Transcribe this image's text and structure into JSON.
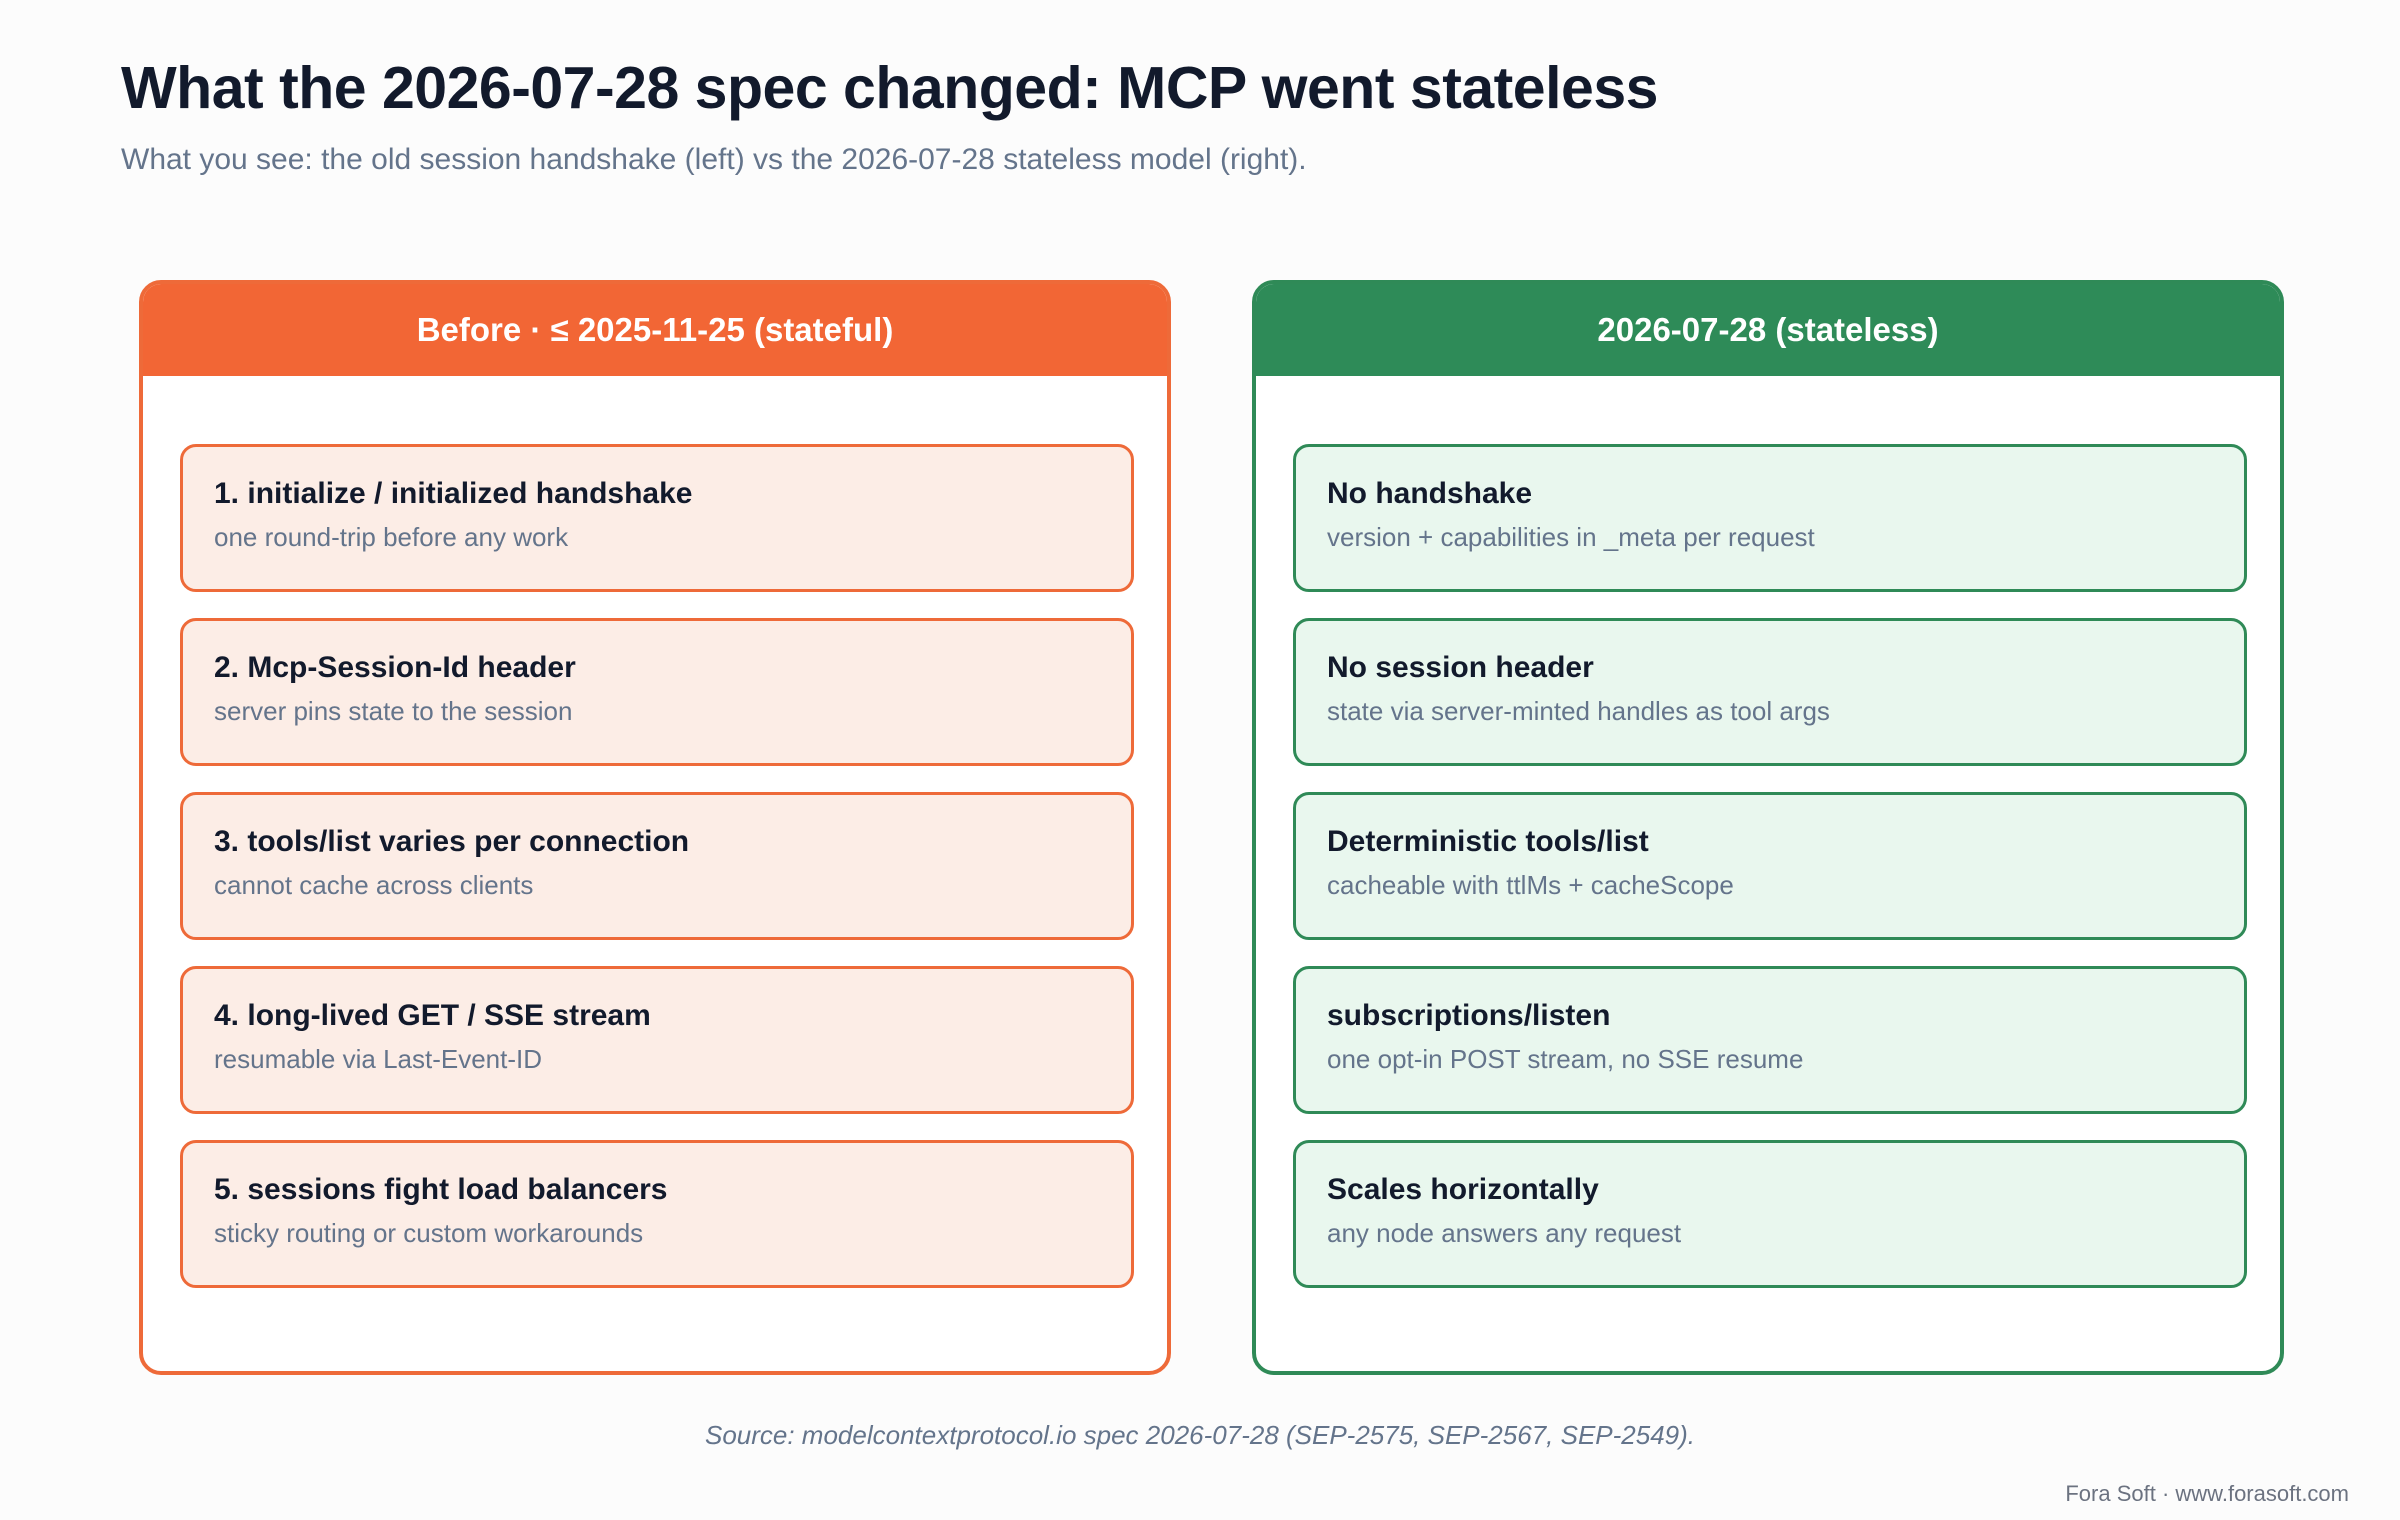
{
  "title": "What the 2026-07-28 spec changed: MCP went stateless",
  "subtitle": "What you see: the old session handshake (left) vs the 2026-07-28 stateless model (right).",
  "panels": [
    {
      "header": "Before · ≤ 2025-11-25 (stateful)",
      "accent_color": "#f26635",
      "card_fill": "#fcede6",
      "cards": [
        {
          "title": "1. initialize / initialized handshake",
          "desc": "one round-trip before any work"
        },
        {
          "title": "2. Mcp-Session-Id header",
          "desc": "server pins state to the session"
        },
        {
          "title": "3. tools/list varies per connection",
          "desc": "cannot cache across clients"
        },
        {
          "title": "4. long-lived GET / SSE stream",
          "desc": "resumable via Last-Event-ID"
        },
        {
          "title": "5. sessions fight load balancers",
          "desc": "sticky routing or custom workarounds"
        }
      ]
    },
    {
      "header": "2026-07-28 (stateless)",
      "accent_color": "#2e8b58",
      "card_fill": "#e9f7ee",
      "cards": [
        {
          "title": "No handshake",
          "desc": "version + capabilities in _meta per request"
        },
        {
          "title": "No session header",
          "desc": "state via server-minted handles as tool args"
        },
        {
          "title": "Deterministic tools/list",
          "desc": "cacheable with ttlMs + cacheScope"
        },
        {
          "title": "subscriptions/listen",
          "desc": "one opt-in POST stream, no SSE resume"
        },
        {
          "title": "Scales horizontally",
          "desc": "any node answers any request"
        }
      ]
    }
  ],
  "source": "Source: modelcontextprotocol.io spec 2026-07-28 (SEP-2575, SEP-2567, SEP-2549).",
  "credit": "Fora Soft · www.forasoft.com"
}
